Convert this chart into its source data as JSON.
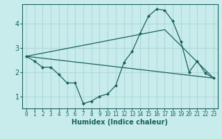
{
  "xlabel": "Humidex (Indice chaleur)",
  "bg_color": "#c8ecec",
  "grid_color": "#b0d8d8",
  "line_color": "#1a6060",
  "x_ticks": [
    0,
    1,
    2,
    3,
    4,
    5,
    6,
    7,
    8,
    9,
    10,
    11,
    12,
    13,
    14,
    15,
    16,
    17,
    18,
    19,
    20,
    21,
    22,
    23
  ],
  "y_ticks": [
    1,
    2,
    3,
    4
  ],
  "ylim": [
    0.5,
    4.8
  ],
  "xlim": [
    -0.5,
    23.5
  ],
  "line1_x": [
    0,
    1,
    2,
    3,
    4,
    5,
    6,
    7,
    8,
    9,
    10,
    11,
    12,
    13,
    14,
    15,
    16,
    17,
    18,
    19,
    20,
    21,
    22,
    23
  ],
  "line1_y": [
    2.65,
    2.45,
    2.2,
    2.2,
    1.9,
    1.55,
    1.55,
    0.7,
    0.8,
    1.0,
    1.1,
    1.45,
    2.4,
    2.85,
    3.6,
    4.3,
    4.6,
    4.55,
    4.1,
    3.25,
    2.0,
    2.45,
    1.95,
    1.75
  ],
  "line2_x": [
    0,
    23
  ],
  "line2_y": [
    2.65,
    1.75
  ],
  "line3_x": [
    0,
    17,
    23
  ],
  "line3_y": [
    2.65,
    3.75,
    1.75
  ]
}
